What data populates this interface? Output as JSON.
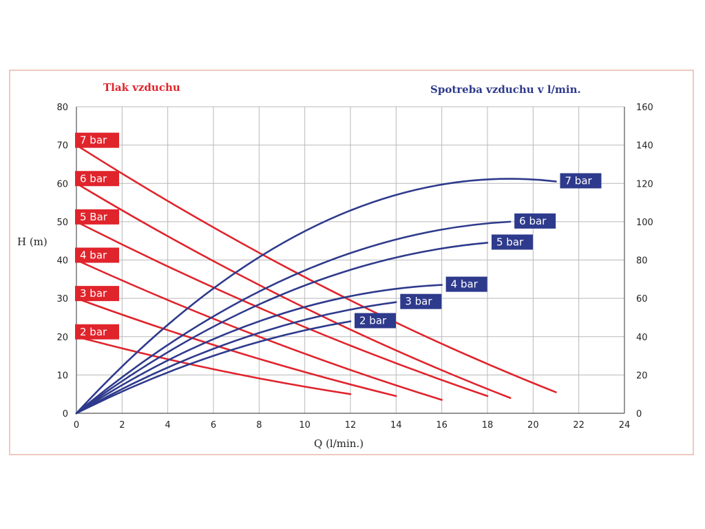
{
  "chart_data": {
    "type": "line",
    "title_left": "Tlak vzduchu",
    "title_right": "Spotreba vzduchu v l/min.",
    "xlabel": "Q (l/min.)",
    "ylabel": "H (m)",
    "xlim": [
      0,
      24
    ],
    "ylim": [
      0,
      80
    ],
    "y2lim": [
      0,
      160
    ],
    "x_ticks": [
      "0",
      "2",
      "4",
      "6",
      "8",
      "10",
      "12",
      "14",
      "16",
      "18",
      "20",
      "22",
      "24"
    ],
    "y_ticks": [
      "0",
      "10",
      "20",
      "30",
      "40",
      "50",
      "60",
      "70",
      "80"
    ],
    "y2_ticks": [
      "0",
      "20",
      "40",
      "60",
      "80",
      "100",
      "120",
      "140",
      "160"
    ],
    "grid": true,
    "colors": {
      "head": "#e0242c",
      "air": "#2e3a8c",
      "frame": "#e8b8a8"
    },
    "head_series": [
      {
        "name": "2 bar",
        "x": [
          0,
          6,
          12
        ],
        "y": [
          20,
          11.5,
          5
        ]
      },
      {
        "name": "3 bar",
        "x": [
          0,
          7,
          14
        ],
        "y": [
          30,
          16,
          4.5
        ]
      },
      {
        "name": "4 bar",
        "x": [
          0,
          8,
          16
        ],
        "y": [
          40,
          20,
          3.5
        ]
      },
      {
        "name": "5 Bar",
        "x": [
          0,
          9,
          18
        ],
        "y": [
          50,
          25,
          4.5
        ]
      },
      {
        "name": "6 bar",
        "x": [
          0,
          9.5,
          19
        ],
        "y": [
          60,
          29,
          4
        ]
      },
      {
        "name": "7 bar",
        "x": [
          0,
          10.5,
          21
        ],
        "y": [
          70,
          34,
          5.5
        ]
      }
    ],
    "air_series": [
      {
        "name": "2 bar",
        "x": [
          0,
          6,
          12
        ],
        "y2": [
          0,
          30,
          48
        ]
      },
      {
        "name": "3 bar",
        "x": [
          0,
          7,
          14
        ],
        "y2": [
          0,
          38,
          58
        ]
      },
      {
        "name": "4 bar",
        "x": [
          0,
          8,
          16
        ],
        "y2": [
          0,
          48,
          67
        ]
      },
      {
        "name": "5 bar",
        "x": [
          0,
          9,
          18
        ],
        "y2": [
          0,
          62,
          89
        ]
      },
      {
        "name": "6 bar",
        "x": [
          0,
          9.5,
          19
        ],
        "y2": [
          0,
          72,
          100
        ]
      },
      {
        "name": "7 bar",
        "x": [
          0,
          10.5,
          21
        ],
        "y2": [
          0,
          98,
          121
        ]
      }
    ]
  }
}
